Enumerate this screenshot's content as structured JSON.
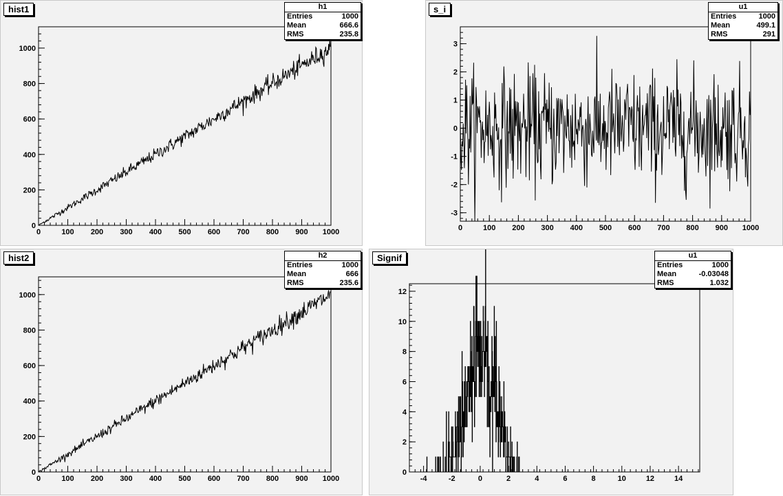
{
  "pads": [
    {
      "id": "hist1",
      "title": "hist1",
      "stats": {
        "name": "h1",
        "entries": "1000",
        "mean": "666.6",
        "rms": "235.8"
      }
    },
    {
      "id": "s_i",
      "title": "s_i",
      "stats": {
        "name": "u1",
        "entries": "1000",
        "mean": "499.1",
        "rms": "291"
      }
    },
    {
      "id": "hist2",
      "title": "hist2",
      "stats": {
        "name": "h2",
        "entries": "1000",
        "mean": "666",
        "rms": "235.6"
      }
    },
    {
      "id": "signif",
      "title": "Signif",
      "stats": {
        "name": "u1",
        "entries": "1000",
        "mean": "-0.03048",
        "rms": "1.032"
      }
    }
  ],
  "stats_labels": {
    "entries": "Entries",
    "mean": "Mean",
    "rms": "RMS"
  },
  "chart_data": [
    {
      "type": "line",
      "title": "hist1",
      "x_range": [
        0,
        1000
      ],
      "ylim": [
        0,
        1120
      ],
      "x_ticks": [
        0,
        100,
        200,
        300,
        400,
        500,
        600,
        700,
        800,
        900,
        1000
      ],
      "y_ticks": [
        0,
        200,
        400,
        600,
        800,
        1000
      ],
      "shape": "linear",
      "slope": 1.0,
      "noise": 30,
      "bins": 1000,
      "grid": false
    },
    {
      "type": "line",
      "title": "s_i",
      "x_range": [
        0,
        1000
      ],
      "ylim": [
        -3.3,
        3.6
      ],
      "x_ticks": [
        0,
        100,
        200,
        300,
        400,
        500,
        600,
        700,
        800,
        900,
        1000
      ],
      "y_ticks": [
        -3,
        -2,
        -1,
        0,
        1,
        2,
        3
      ],
      "shape": "noise",
      "mean": 0,
      "sigma": 1.0,
      "bins": 1000,
      "grid": false
    },
    {
      "type": "line",
      "title": "hist2",
      "x_range": [
        0,
        1000
      ],
      "ylim": [
        0,
        1100
      ],
      "x_ticks": [
        0,
        100,
        200,
        300,
        400,
        500,
        600,
        700,
        800,
        900,
        1000
      ],
      "y_ticks": [
        0,
        200,
        400,
        600,
        800,
        1000
      ],
      "shape": "linear",
      "slope": 1.0,
      "noise": 30,
      "bins": 1000,
      "grid": false
    },
    {
      "type": "bar",
      "title": "Signif",
      "x_range": [
        -5,
        15.5
      ],
      "ylim": [
        0,
        12.5
      ],
      "x_ticks": [
        -4,
        -2,
        0,
        2,
        4,
        6,
        8,
        10,
        12,
        14
      ],
      "y_ticks": [
        0,
        2,
        4,
        6,
        8,
        10,
        12
      ],
      "shape": "gaussian",
      "mean": 0,
      "sigma": 1.0,
      "bins": 1000,
      "grid": false
    }
  ]
}
